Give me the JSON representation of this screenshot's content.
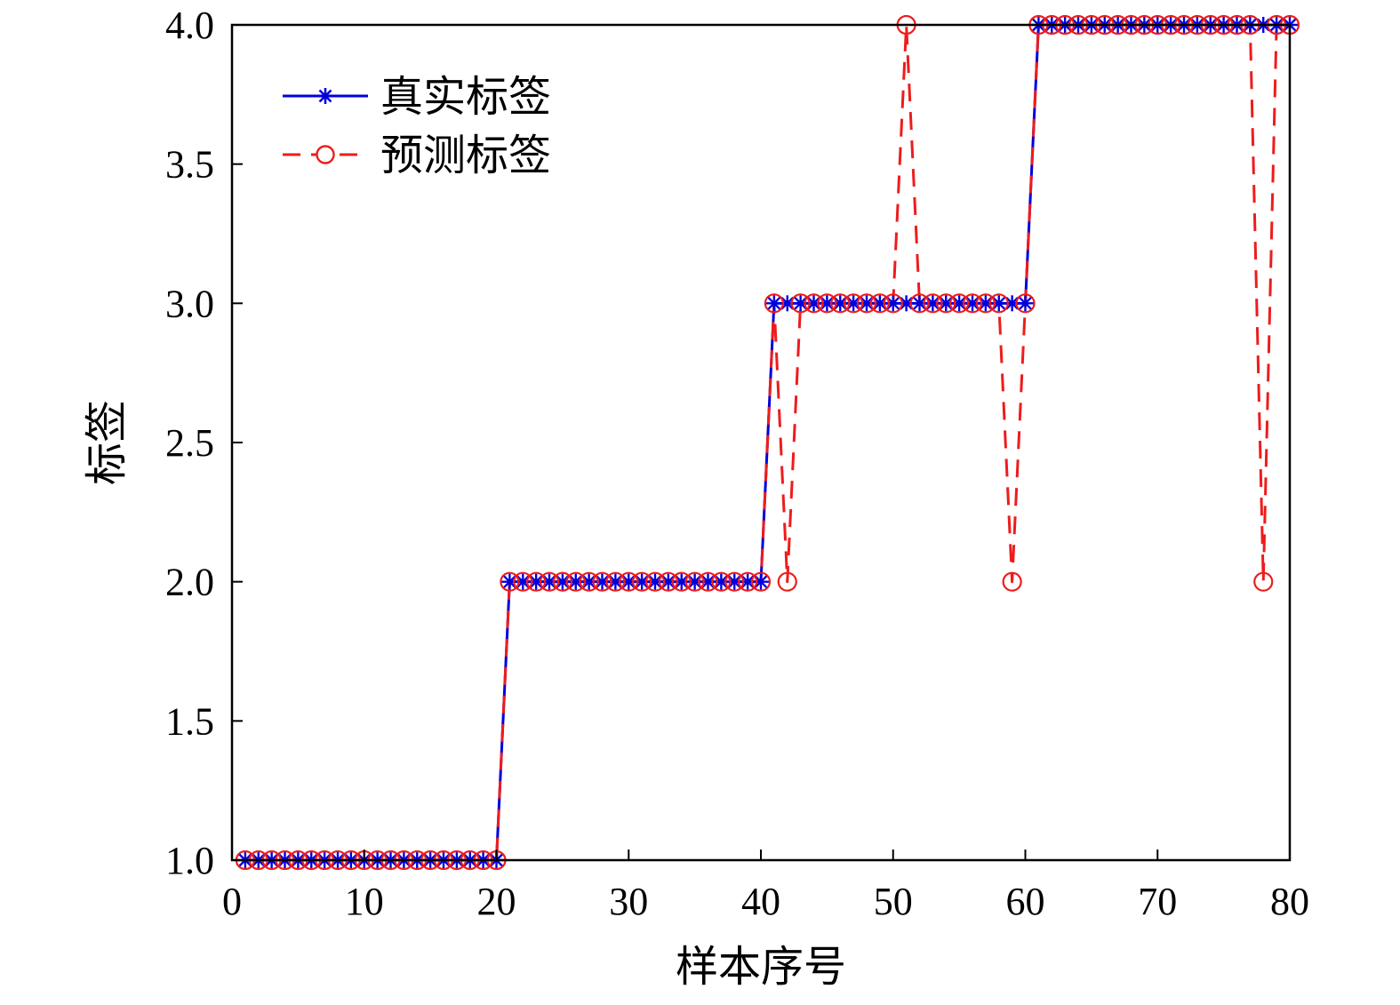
{
  "chart_data": {
    "type": "line",
    "title": "",
    "xlabel": "样本序号",
    "ylabel": "标签",
    "xlim": [
      0,
      80
    ],
    "ylim": [
      1.0,
      4.0
    ],
    "x_ticks": [
      "0",
      "10",
      "20",
      "30",
      "40",
      "50",
      "60",
      "70",
      "80"
    ],
    "y_ticks": [
      "1.0",
      "1.5",
      "2.0",
      "2.5",
      "3.0",
      "3.5",
      "4.0"
    ],
    "grid": false,
    "legend_position": "top-left",
    "x": [
      1,
      2,
      3,
      4,
      5,
      6,
      7,
      8,
      9,
      10,
      11,
      12,
      13,
      14,
      15,
      16,
      17,
      18,
      19,
      20,
      21,
      22,
      23,
      24,
      25,
      26,
      27,
      28,
      29,
      30,
      31,
      32,
      33,
      34,
      35,
      36,
      37,
      38,
      39,
      40,
      41,
      42,
      43,
      44,
      45,
      46,
      47,
      48,
      49,
      50,
      51,
      52,
      53,
      54,
      55,
      56,
      57,
      58,
      59,
      60,
      61,
      62,
      63,
      64,
      65,
      66,
      67,
      68,
      69,
      70,
      71,
      72,
      73,
      74,
      75,
      76,
      77,
      78,
      79,
      80
    ],
    "series": [
      {
        "name": "真实标签",
        "color": "#0000dd",
        "line_style": "solid",
        "marker": "asterisk",
        "values": [
          1,
          1,
          1,
          1,
          1,
          1,
          1,
          1,
          1,
          1,
          1,
          1,
          1,
          1,
          1,
          1,
          1,
          1,
          1,
          1,
          2,
          2,
          2,
          2,
          2,
          2,
          2,
          2,
          2,
          2,
          2,
          2,
          2,
          2,
          2,
          2,
          2,
          2,
          2,
          2,
          3,
          3,
          3,
          3,
          3,
          3,
          3,
          3,
          3,
          3,
          3,
          3,
          3,
          3,
          3,
          3,
          3,
          3,
          3,
          3,
          4,
          4,
          4,
          4,
          4,
          4,
          4,
          4,
          4,
          4,
          4,
          4,
          4,
          4,
          4,
          4,
          4,
          4,
          4,
          4
        ]
      },
      {
        "name": "预测标签",
        "color": "#ee1c1c",
        "line_style": "dashed",
        "marker": "circle",
        "values": [
          1,
          1,
          1,
          1,
          1,
          1,
          1,
          1,
          1,
          1,
          1,
          1,
          1,
          1,
          1,
          1,
          1,
          1,
          1,
          1,
          2,
          2,
          2,
          2,
          2,
          2,
          2,
          2,
          2,
          2,
          2,
          2,
          2,
          2,
          2,
          2,
          2,
          2,
          2,
          2,
          3,
          2,
          3,
          3,
          3,
          3,
          3,
          3,
          3,
          3,
          4,
          3,
          3,
          3,
          3,
          3,
          3,
          3,
          2,
          3,
          4,
          4,
          4,
          4,
          4,
          4,
          4,
          4,
          4,
          4,
          4,
          4,
          4,
          4,
          4,
          4,
          4,
          2,
          4,
          4
        ]
      }
    ]
  }
}
